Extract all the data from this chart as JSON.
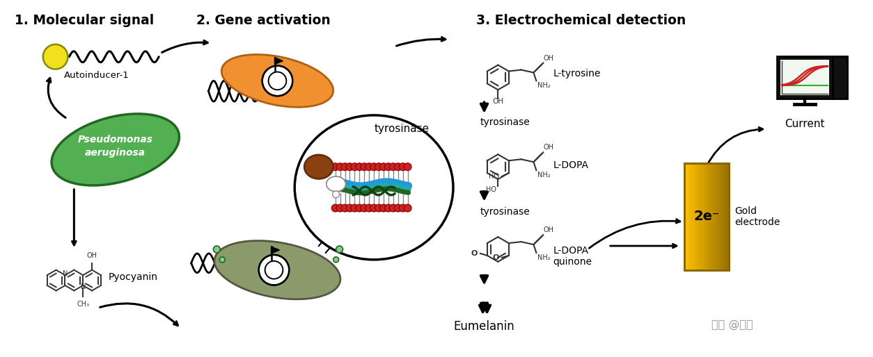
{
  "section_titles": [
    "1. Molecular signal",
    "2. Gene activation",
    "3. Electrochemical detection"
  ],
  "labels": {
    "autoinducer": "Autoinducer-1",
    "bacteria": "Pseudomonas\naeruginosa",
    "pyocyanin": "Pyocyanin",
    "tyrosinase_label": "tyrosinase",
    "l_tyrosine": "L-tyrosine",
    "l_dopa": "L-DOPA",
    "l_dopa_quinone": "L-DOPA\nquinone",
    "eumelanin": "Eumelanin",
    "tyrosinase2": "tyrosinase",
    "current": "Current",
    "gold": "Gold\nelectrode",
    "two_e": "2e⁻",
    "watermark": "知乎 @燃溪"
  },
  "colors": {
    "background": "#ffffff",
    "title_bold": "#000000",
    "autoinducer_ball": "#f0e020",
    "bacteria_green": "#52b052",
    "bacteria_olive": "#8a9a6a",
    "plasmid_orange": "#f09030",
    "gold_top": "#f5c030",
    "gold_bot": "#c07010",
    "membrane_red": "#cc2222",
    "membrane_gray": "#aaaaaa",
    "membrane_blue": "#2299dd",
    "membrane_teal": "#22aaaa",
    "membrane_green": "#226622",
    "membrane_dkgreen": "#114411",
    "brown_ball": "#8b4010",
    "monitor_dark": "#111111",
    "graph_red": "#cc2222",
    "graph_green": "#33aa33",
    "watermark_gray": "#999999"
  },
  "fig_width": 12.54,
  "fig_height": 5.14
}
